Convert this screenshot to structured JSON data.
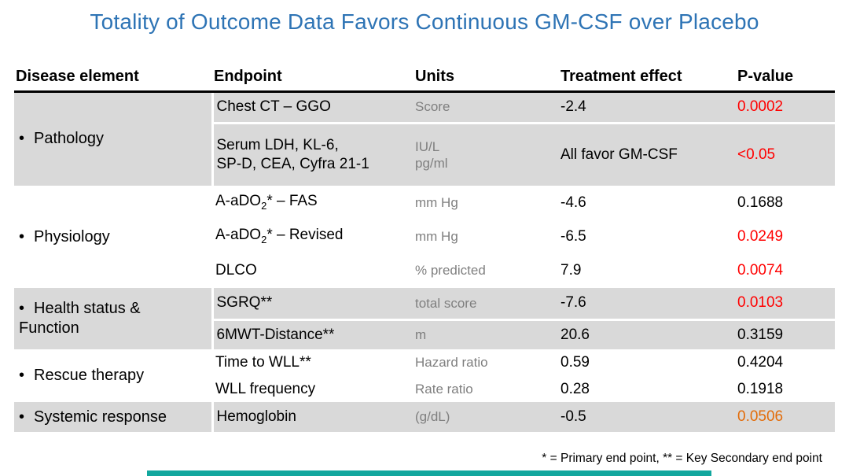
{
  "slide": {
    "title": "Totality of Outcome Data Favors Continuous GM-CSF over Placebo",
    "footnote": "* = Primary end point, ** = Key Secondary end point",
    "bullet": "•"
  },
  "colors": {
    "title_blue": "#2E74B5",
    "row_shade_gray": "#D9D9D9",
    "units_gray": "#7F7F7F",
    "pvalue_red": "#FF0000",
    "pvalue_orange": "#E36C09",
    "accent_bar_teal": "#12A79E"
  },
  "table": {
    "headers": [
      "Disease element",
      "Endpoint",
      "Units",
      "Treatment effect",
      "P-value"
    ],
    "groups": [
      {
        "label": "Pathology",
        "shaded": true,
        "rows": [
          {
            "endpoint": "Chest CT – GGO",
            "units": "Score",
            "effect": "-2.4",
            "pvalue": "0.0002",
            "p_color": "red"
          },
          {
            "endpoint": "Serum LDH, KL-6,\nSP-D, CEA, Cyfra 21-1",
            "units": "IU/L\npg/ml",
            "effect": "All favor GM-CSF",
            "pvalue": "<0.05",
            "p_color": "red"
          }
        ]
      },
      {
        "label": "Physiology",
        "shaded": false,
        "rows": [
          {
            "endpoint_pre": "A-aDO",
            "endpoint_sub": "2",
            "endpoint_post": "* – FAS",
            "units": "mm Hg",
            "effect": "-4.6",
            "pvalue": "0.1688",
            "p_color": "black"
          },
          {
            "endpoint_pre": "A-aDO",
            "endpoint_sub": "2",
            "endpoint_post": "* – Revised",
            "units": "mm Hg",
            "effect": "-6.5",
            "pvalue": "0.0249",
            "p_color": "red"
          },
          {
            "endpoint": "DLCO",
            "units": "% predicted",
            "effect": "7.9",
            "pvalue": "0.0074",
            "p_color": "red"
          }
        ]
      },
      {
        "label": "Health status &\nFunction",
        "shaded": true,
        "rows": [
          {
            "endpoint": "SGRQ**",
            "units": "total score",
            "effect": "-7.6",
            "pvalue": "0.0103",
            "p_color": "red"
          },
          {
            "endpoint": "6MWT-Distance**",
            "units": "m",
            "effect": "20.6",
            "pvalue": "0.3159",
            "p_color": "black"
          }
        ]
      },
      {
        "label": "Rescue therapy",
        "shaded": false,
        "rows": [
          {
            "endpoint": "Time to WLL**",
            "units": "Hazard ratio",
            "effect": "0.59",
            "pvalue": "0.4204",
            "p_color": "black"
          },
          {
            "endpoint": "WLL frequency",
            "units": "Rate ratio",
            "effect": "0.28",
            "pvalue": "0.1918",
            "p_color": "black"
          }
        ]
      },
      {
        "label": "Systemic response",
        "shaded": true,
        "rows": [
          {
            "endpoint": "Hemoglobin",
            "units": "(g/dL)",
            "effect": "-0.5",
            "pvalue": "0.0506",
            "p_color": "orange"
          }
        ]
      }
    ]
  }
}
